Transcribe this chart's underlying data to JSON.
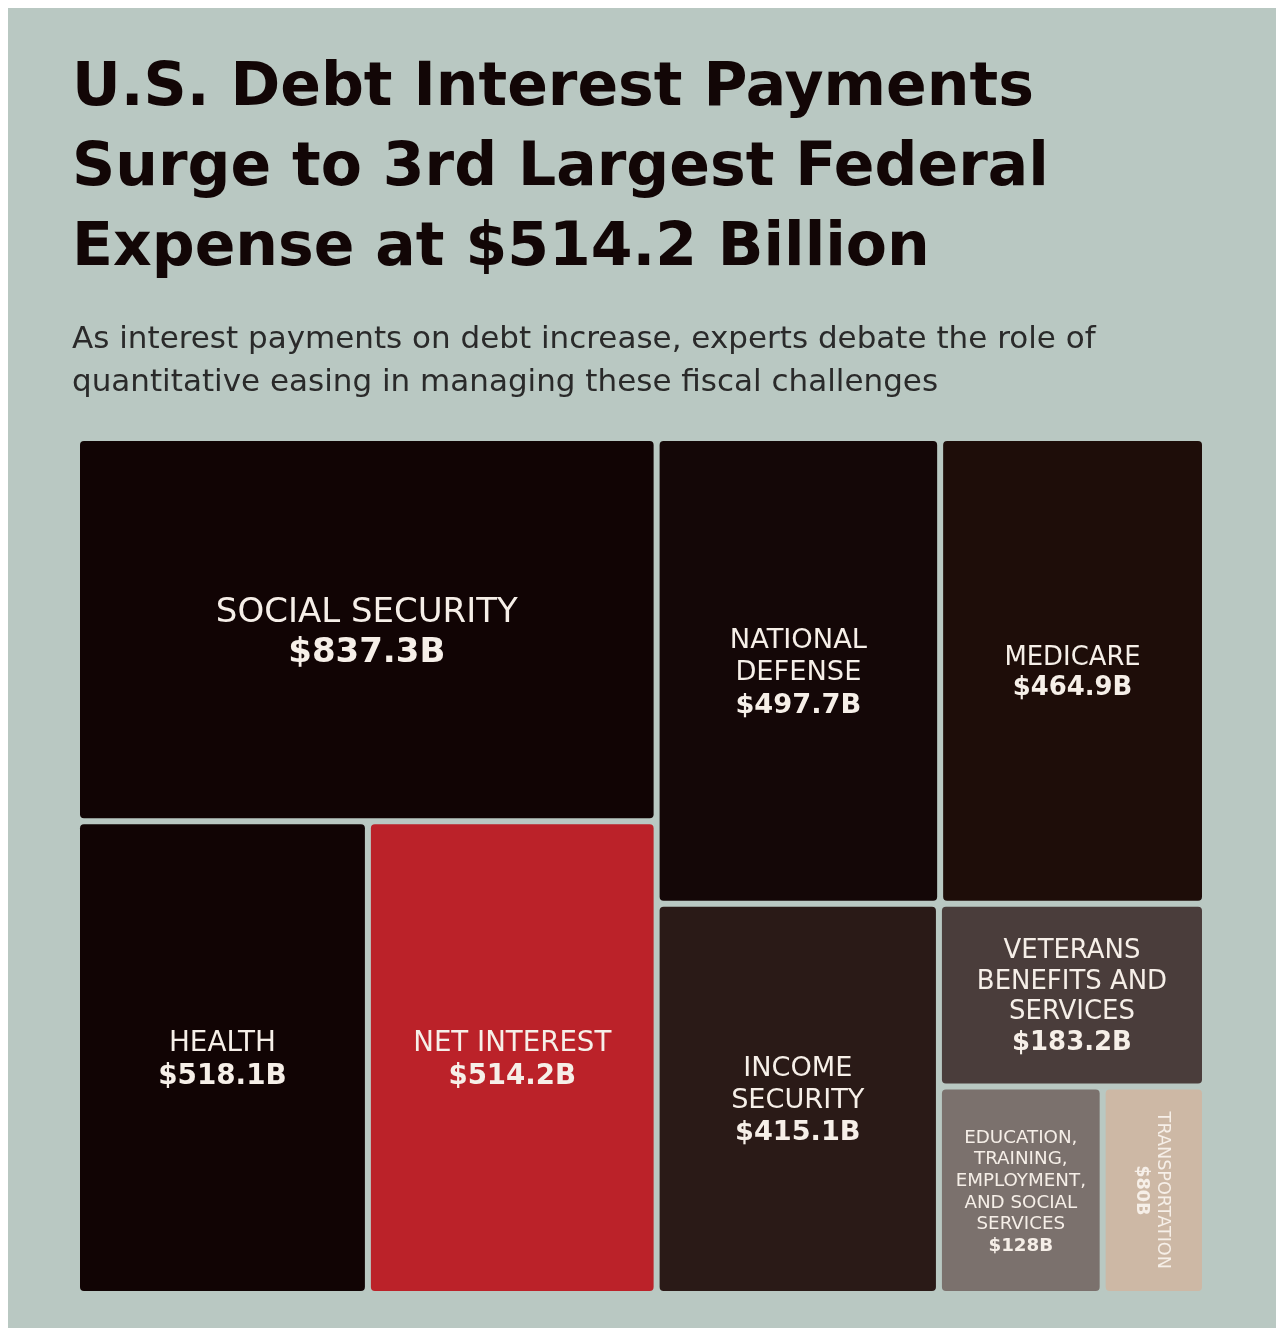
{
  "chart_data": {
    "type": "other",
    "title": "U.S. Debt Interest Payments Surge to 3rd Largest Federal Expense at $514.2 Billion",
    "subtitle": "As interest payments on debt increase, experts debate the role of quantitative easing in managing these fiscal challenges",
    "categories": [
      "SOCIAL SECURITY",
      "HEALTH",
      "NET INTEREST",
      "NATIONAL DEFENSE",
      "MEDICARE",
      "INCOME SECURITY",
      "VETERANS BENEFITS AND SERVICES",
      "EDUCATION, TRAINING, EMPLOYMENT, AND SOCIAL SERVICES",
      "TRANSPORTATION"
    ],
    "values": [
      837.3,
      518.1,
      514.2,
      497.7,
      464.9,
      415.1,
      183.2,
      128,
      80
    ],
    "value_labels": [
      "$837.3B",
      "$518.1B",
      "$514.2B",
      "$497.7B",
      "$464.9B",
      "$415.1B",
      "$183.2B",
      "$128B",
      "$80B"
    ],
    "colors": [
      "#110404",
      "#110404",
      "#bb2229",
      "#140707",
      "#1e0d09",
      "#2a1a17",
      "#4a3d3b",
      "#7b716d",
      "#cdb8a5"
    ]
  }
}
